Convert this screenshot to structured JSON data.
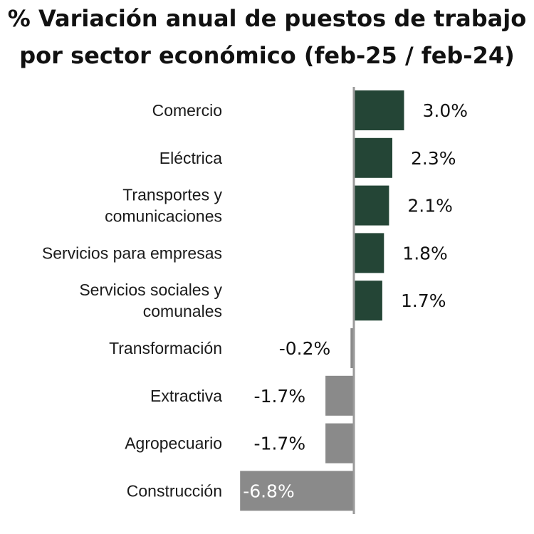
{
  "chart_data": {
    "type": "bar",
    "orientation": "horizontal",
    "title_lines": [
      "% Variación anual de puestos de trabajo",
      "por sector económico (feb-25 / feb-24)"
    ],
    "categories": [
      [
        "Comercio"
      ],
      [
        "Eléctrica"
      ],
      [
        "Transportes y",
        "comunicaciones"
      ],
      [
        "Servicios para empresas"
      ],
      [
        "Servicios sociales y",
        "comunales"
      ],
      [
        "Transformación"
      ],
      [
        "Extractiva"
      ],
      [
        "Agropecuario"
      ],
      [
        "Construcción"
      ]
    ],
    "values": [
      3.0,
      2.3,
      2.1,
      1.8,
      1.7,
      -0.2,
      -1.7,
      -1.7,
      -6.8
    ],
    "value_labels": [
      "3.0%",
      "2.3%",
      "2.1%",
      "1.8%",
      "1.7%",
      "-0.2%",
      "-1.7%",
      "-1.7%",
      "-6.8%"
    ],
    "colors": {
      "positive": "#244536",
      "negative": "#8a8a8a",
      "axis": "#9a9a9a",
      "label_on_bar": "#ffffff",
      "label": "#111111"
    },
    "xlim": [
      -6.8,
      3.0
    ],
    "grid": false,
    "legend": "none"
  }
}
